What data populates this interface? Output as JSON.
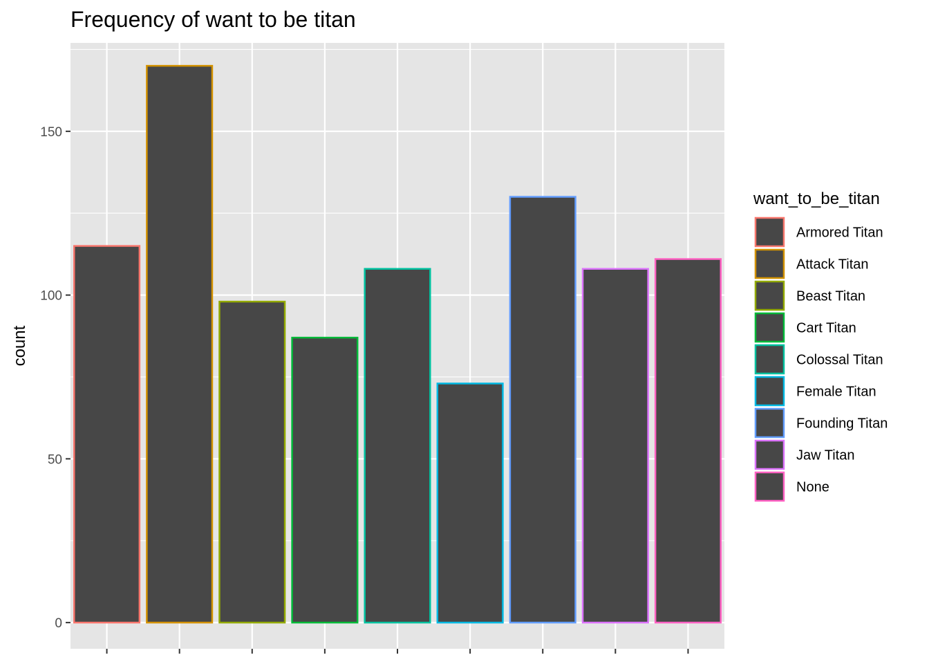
{
  "chart_data": {
    "type": "bar",
    "title": "Frequency of want to be titan",
    "xlabel": "",
    "ylabel": "count",
    "categories": [
      "Armored Titan",
      "Attack Titan",
      "Beast Titan",
      "Cart Titan",
      "Colossal Titan",
      "Female Titan",
      "Founding Titan",
      "Jaw Titan",
      "None"
    ],
    "values": [
      115,
      170,
      98,
      87,
      108,
      73,
      130,
      108,
      111
    ],
    "ylim": [
      -8,
      177
    ],
    "yticks": [
      0,
      50,
      100,
      150
    ],
    "ytick_labels": [
      "0",
      "50",
      "100",
      "150"
    ],
    "grid": true,
    "legend": {
      "title": "want_to_be_titan",
      "placement": "right",
      "entries": [
        "Armored Titan",
        "Attack Titan",
        "Beast Titan",
        "Cart Titan",
        "Colossal Titan",
        "Female Titan",
        "Founding Titan",
        "Jaw Titan",
        "None"
      ]
    },
    "colors": {
      "bar_fill": "#474747",
      "panel_background": "#e5e5e5",
      "grid": "#ffffff",
      "outlines": [
        "#f8766d",
        "#d39200",
        "#93aa00",
        "#00ba38",
        "#00c19f",
        "#00b9e3",
        "#619cff",
        "#db72fb",
        "#ff61c3"
      ]
    }
  }
}
